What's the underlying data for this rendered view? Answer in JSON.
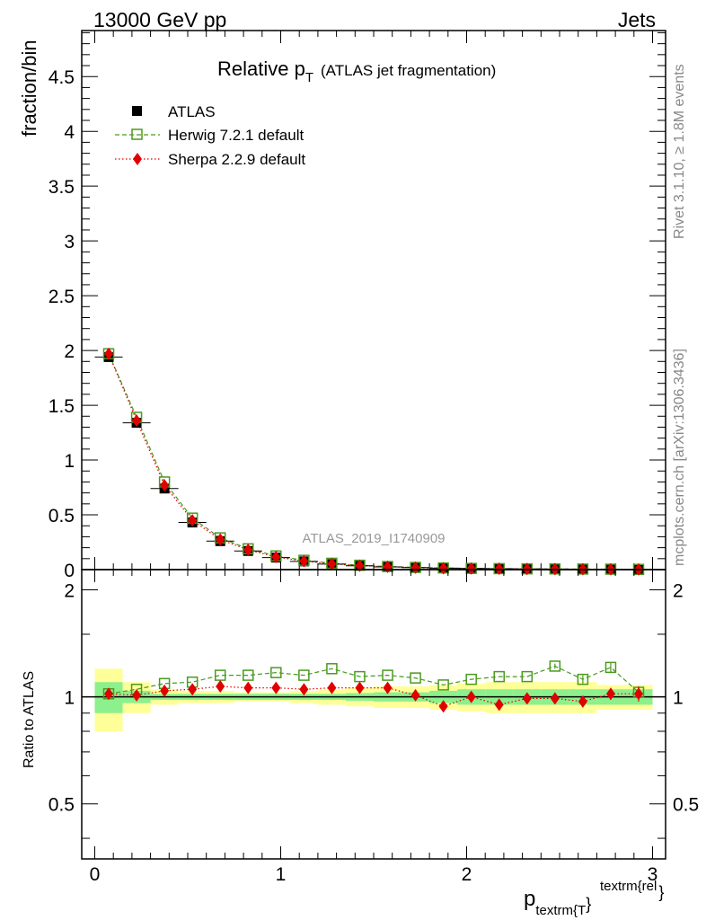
{
  "header": {
    "left": "13000 GeV pp",
    "right": "Jets"
  },
  "title": {
    "main": "Relative p",
    "main_sub": "T",
    "suffix": "(ATLAS jet fragmentation)"
  },
  "side_labels": {
    "rivet": "Rivet 3.1.10, ≥ 1.8M events",
    "mcplots": "mcplots.cern.ch [arXiv:1306.3436]"
  },
  "watermark": "ATLAS_2019_I1740909",
  "ylabel_main": "fraction/bin",
  "ylabel_ratio": "Ratio to ATLAS",
  "xlabel": {
    "base": "p",
    "sub": "textrm{T",
    "close": "}",
    "sup": "textrm{rel",
    "sup_close": "}"
  },
  "legend": [
    {
      "label": "ATLAS",
      "key": "atlas"
    },
    {
      "label": "Herwig 7.2.1 default",
      "key": "herwig"
    },
    {
      "label": "Sherpa 2.2.9 default",
      "key": "sherpa"
    }
  ],
  "colors": {
    "atlas": "#000000",
    "herwig": "#4a9a1e",
    "sherpa": "#e00000",
    "band_inner": "#8cf08c",
    "band_outer": "#ffff99"
  },
  "chart_data": [
    {
      "type": "scatter",
      "panel": "main",
      "xlim": [
        -0.07,
        3.07
      ],
      "ylim": [
        0,
        4.92
      ],
      "xticks": [
        0,
        1,
        2,
        3
      ],
      "yticks": [
        0,
        0.5,
        1,
        1.5,
        2,
        2.5,
        3,
        3.5,
        4,
        4.5
      ],
      "ytick_labels": [
        "0",
        "0.5",
        "1",
        "1.5",
        "2",
        "2.5",
        "3",
        "3.5",
        "4",
        "4.5"
      ],
      "x": [
        0.075,
        0.225,
        0.375,
        0.525,
        0.675,
        0.825,
        0.975,
        1.125,
        1.275,
        1.425,
        1.575,
        1.725,
        1.875,
        2.025,
        2.175,
        2.325,
        2.475,
        2.625,
        2.775,
        2.925
      ],
      "series": [
        {
          "name": "ATLAS",
          "values": [
            1.94,
            1.34,
            0.74,
            0.43,
            0.26,
            0.17,
            0.11,
            0.075,
            0.05,
            0.035,
            0.025,
            0.018,
            0.013,
            0.01,
            0.008,
            0.006,
            0.005,
            0.004,
            0.003,
            0.002
          ]
        },
        {
          "name": "Herwig 7.2.1 default",
          "values": [
            1.97,
            1.39,
            0.8,
            0.47,
            0.29,
            0.19,
            0.125,
            0.085,
            0.058,
            0.04,
            0.028,
            0.02,
            0.015,
            0.011,
            0.009,
            0.007,
            0.006,
            0.005,
            0.004,
            0.002
          ]
        },
        {
          "name": "Sherpa 2.2.9 default",
          "values": [
            1.97,
            1.36,
            0.77,
            0.45,
            0.275,
            0.18,
            0.115,
            0.078,
            0.052,
            0.036,
            0.026,
            0.018,
            0.012,
            0.01,
            0.008,
            0.006,
            0.005,
            0.004,
            0.003,
            0.002
          ]
        }
      ]
    },
    {
      "type": "scatter",
      "panel": "ratio",
      "xlim": [
        -0.07,
        3.07
      ],
      "ylim": [
        0.35,
        2.28
      ],
      "xticks": [
        0,
        1,
        2,
        3
      ],
      "xtick_labels": [
        "0",
        "1",
        "2",
        "3"
      ],
      "yticks": [
        0.5,
        1,
        2
      ],
      "ytick_labels": [
        "0.5",
        "1",
        "2"
      ],
      "x": [
        0.075,
        0.225,
        0.375,
        0.525,
        0.675,
        0.825,
        0.975,
        1.125,
        1.275,
        1.425,
        1.575,
        1.725,
        1.875,
        2.025,
        2.175,
        2.325,
        2.475,
        2.625,
        2.775,
        2.925
      ],
      "bands": {
        "inner": [
          0.1,
          0.04,
          0.02,
          0.02,
          0.02,
          0.02,
          0.02,
          0.02,
          0.02,
          0.025,
          0.03,
          0.03,
          0.04,
          0.05,
          0.05,
          0.05,
          0.05,
          0.05,
          0.05,
          0.05
        ],
        "outer": [
          0.2,
          0.1,
          0.05,
          0.04,
          0.04,
          0.03,
          0.03,
          0.04,
          0.05,
          0.06,
          0.07,
          0.07,
          0.08,
          0.09,
          0.1,
          0.1,
          0.1,
          0.1,
          0.08,
          0.08
        ]
      },
      "series": [
        {
          "name": "Herwig 7.2.1 default",
          "values": [
            1.02,
            1.05,
            1.09,
            1.1,
            1.15,
            1.15,
            1.17,
            1.15,
            1.2,
            1.14,
            1.15,
            1.13,
            1.08,
            1.12,
            1.14,
            1.14,
            1.22,
            1.12,
            1.21,
            1.03
          ],
          "errors": [
            0,
            0,
            0,
            0,
            0,
            0,
            0,
            0,
            0,
            0,
            0,
            0,
            0,
            0,
            0,
            0,
            0.02,
            0.03,
            0.04,
            0.04
          ]
        },
        {
          "name": "Sherpa 2.2.9 default",
          "values": [
            1.02,
            1.01,
            1.04,
            1.05,
            1.07,
            1.06,
            1.06,
            1.05,
            1.06,
            1.06,
            1.06,
            1.01,
            0.94,
            1.0,
            0.95,
            0.99,
            0.99,
            0.97,
            1.02,
            1.02
          ],
          "errors": [
            0,
            0,
            0,
            0,
            0,
            0,
            0,
            0,
            0,
            0,
            0,
            0,
            0,
            0,
            0,
            0,
            0.02,
            0.02,
            0.04,
            0.05
          ]
        }
      ]
    }
  ]
}
